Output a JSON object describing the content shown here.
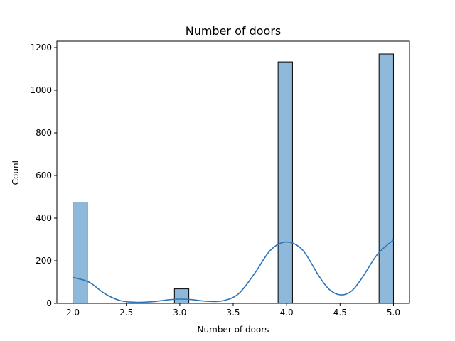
{
  "chart_data": {
    "type": "bar",
    "title": "Number of doors",
    "xlabel": "Number of doors",
    "ylabel": "Count",
    "xlim": [
      1.85,
      5.15
    ],
    "ylim": [
      0,
      1230
    ],
    "bin_width": 0.135,
    "xticks": [
      2.0,
      2.5,
      3.0,
      3.5,
      4.0,
      4.5,
      5.0
    ],
    "xtick_labels": [
      "2.0",
      "2.5",
      "3.0",
      "3.5",
      "4.0",
      "4.5",
      "5.0"
    ],
    "yticks": [
      0,
      200,
      400,
      600,
      800,
      1000,
      1200
    ],
    "ytick_labels": [
      "0",
      "200",
      "400",
      "600",
      "800",
      "1000",
      "1200"
    ],
    "bins": [
      {
        "x_start": 2.0,
        "count": 475
      },
      {
        "x_start": 2.95,
        "count": 68
      },
      {
        "x_start": 3.92,
        "count": 1133
      },
      {
        "x_start": 4.865,
        "count": 1170
      }
    ],
    "kde": {
      "x": [
        2.0,
        2.15,
        2.3,
        2.45,
        2.6,
        2.75,
        2.9,
        3.0,
        3.1,
        3.25,
        3.4,
        3.55,
        3.7,
        3.85,
        4.0,
        4.15,
        4.3,
        4.4,
        4.5,
        4.6,
        4.7,
        4.85,
        5.0
      ],
      "y": [
        122,
        100,
        45,
        12,
        5,
        8,
        17,
        20,
        18,
        10,
        12,
        45,
        140,
        250,
        288,
        250,
        130,
        65,
        40,
        55,
        115,
        230,
        298
      ]
    },
    "colors": {
      "bar_fill": "#8fb9da",
      "bar_edge": "#000000",
      "kde_line": "#2e75b6"
    },
    "grid": false,
    "legend": "none"
  }
}
